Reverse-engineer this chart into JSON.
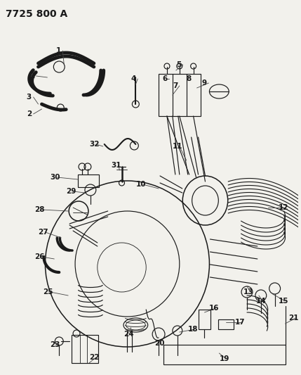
{
  "title": "7725 800 A",
  "bg_color": "#f5f5f0",
  "line_color": "#1a1a1a",
  "label_color": "#111111",
  "title_fontsize": 10,
  "label_fontsize": 7.5,
  "figsize": [
    4.29,
    5.33
  ],
  "dpi": 100,
  "img_bg": "#f0efe8"
}
